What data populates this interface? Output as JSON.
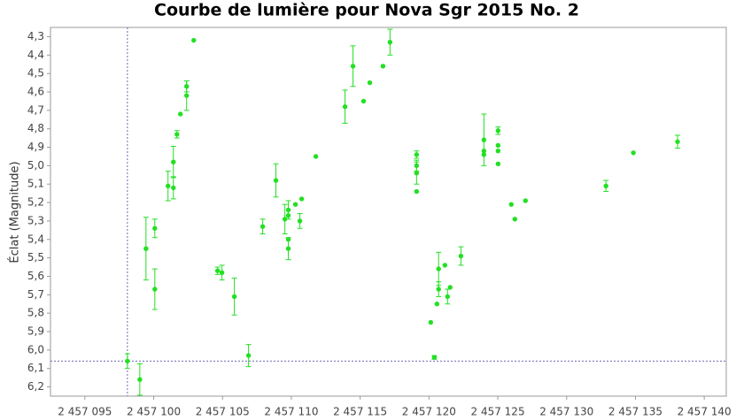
{
  "chart_data": {
    "type": "scatter",
    "title": "Courbe de lumière pour Nova Sgr 2015 No. 2",
    "y_label": "Éclat (Magnitude)",
    "xlim": [
      2457092.5,
      2457141.6
    ],
    "ylim": [
      4.25,
      6.25
    ],
    "y_inverted": true,
    "xticks": [
      {
        "value": 2457095,
        "label": "2 457 095"
      },
      {
        "value": 2457100,
        "label": "2 457 100"
      },
      {
        "value": 2457105,
        "label": "2 457 105"
      },
      {
        "value": 2457110,
        "label": "2 457 110"
      },
      {
        "value": 2457115,
        "label": "2 457 115"
      },
      {
        "value": 2457120,
        "label": "2 457 120"
      },
      {
        "value": 2457125,
        "label": "2 457 125"
      },
      {
        "value": 2457130,
        "label": "2 457 130"
      },
      {
        "value": 2457135,
        "label": "2 457 135"
      },
      {
        "value": 2457140,
        "label": "2 457 140"
      }
    ],
    "yticks": [
      {
        "value": 4.3,
        "label": "4,3"
      },
      {
        "value": 4.4,
        "label": "4,4"
      },
      {
        "value": 4.5,
        "label": "4,5"
      },
      {
        "value": 4.6,
        "label": "4,6"
      },
      {
        "value": 4.7,
        "label": "4,7"
      },
      {
        "value": 4.8,
        "label": "4,8"
      },
      {
        "value": 4.9,
        "label": "4,9"
      },
      {
        "value": 5.0,
        "label": "5,0"
      },
      {
        "value": 5.1,
        "label": "5,1"
      },
      {
        "value": 5.2,
        "label": "5,2"
      },
      {
        "value": 5.3,
        "label": "5,3"
      },
      {
        "value": 5.4,
        "label": "5,4"
      },
      {
        "value": 5.5,
        "label": "5,5"
      },
      {
        "value": 5.6,
        "label": "5,6"
      },
      {
        "value": 5.7,
        "label": "5,7"
      },
      {
        "value": 5.8,
        "label": "5,8"
      },
      {
        "value": 5.9,
        "label": "5,9"
      },
      {
        "value": 6.0,
        "label": "6,0"
      },
      {
        "value": 6.1,
        "label": "6,1"
      },
      {
        "value": 6.2,
        "label": "6,2"
      }
    ],
    "crosshair": {
      "x": 2457098.09,
      "y": 6.06
    },
    "series": [
      {
        "color": "#22e022",
        "x": [
          2457098.09,
          2457098.99,
          2457099.44,
          2457100.08,
          2457100.08,
          2457101.04,
          2457101.43,
          2457101.43,
          2457101.69,
          2457101.94,
          2457102.39,
          2457102.39,
          2457102.91,
          2457104.64,
          2457104.96,
          2457105.86,
          2457106.89,
          2457107.92,
          2457108.88,
          2457109.53,
          2457109.78,
          2457109.78,
          2457109.78,
          2457109.78,
          2457110.3,
          2457110.62,
          2457110.75,
          2457111.78,
          2457113.9,
          2457114.48,
          2457115.25,
          2457115.7,
          2457116.66,
          2457117.17,
          2457119.1,
          2457119.1,
          2457119.1,
          2457119.1,
          2457120.13,
          2457120.39,
          2457120.58,
          2457120.7,
          2457120.7,
          2457121.16,
          2457121.35,
          2457121.54,
          2457122.32,
          2457123.99,
          2457123.99,
          2457123.99,
          2457125.02,
          2457125.02,
          2457125.02,
          2457125.02,
          2457125.98,
          2457126.24,
          2457127.01,
          2457132.86,
          2457134.85,
          2457138.06
        ],
        "values": [
          6.06,
          6.16,
          5.45,
          5.34,
          5.67,
          5.11,
          4.98,
          5.12,
          4.83,
          4.72,
          4.57,
          4.62,
          4.32,
          5.57,
          5.58,
          5.71,
          6.03,
          5.33,
          5.08,
          5.29,
          5.24,
          5.27,
          5.4,
          5.45,
          5.21,
          5.3,
          5.18,
          4.95,
          4.68,
          4.46,
          4.65,
          4.55,
          4.46,
          4.33,
          4.94,
          5.0,
          5.04,
          5.14,
          5.85,
          6.04,
          5.75,
          5.56,
          5.67,
          5.54,
          5.71,
          5.66,
          5.49,
          4.86,
          4.92,
          4.94,
          4.81,
          4.89,
          4.92,
          4.99,
          5.21,
          5.29,
          5.19,
          5.11,
          4.93,
          4.87
        ],
        "errors": [
          0.04,
          0.085,
          0.17,
          0.05,
          0.11,
          0.08,
          0.085,
          0.06,
          0.02,
          null,
          0.03,
          0.08,
          null,
          0.02,
          0.04,
          0.1,
          0.06,
          0.04,
          0.09,
          0.08,
          0.05,
          null,
          null,
          0.06,
          null,
          0.04,
          null,
          null,
          0.09,
          0.11,
          null,
          null,
          null,
          0.07,
          0.02,
          0.03,
          0.06,
          null,
          null,
          0.01,
          null,
          0.09,
          0.04,
          null,
          0.04,
          null,
          0.05,
          0.14,
          null,
          null,
          0.02,
          null,
          null,
          null,
          null,
          null,
          null,
          0.03,
          null,
          0.035
        ]
      }
    ]
  }
}
